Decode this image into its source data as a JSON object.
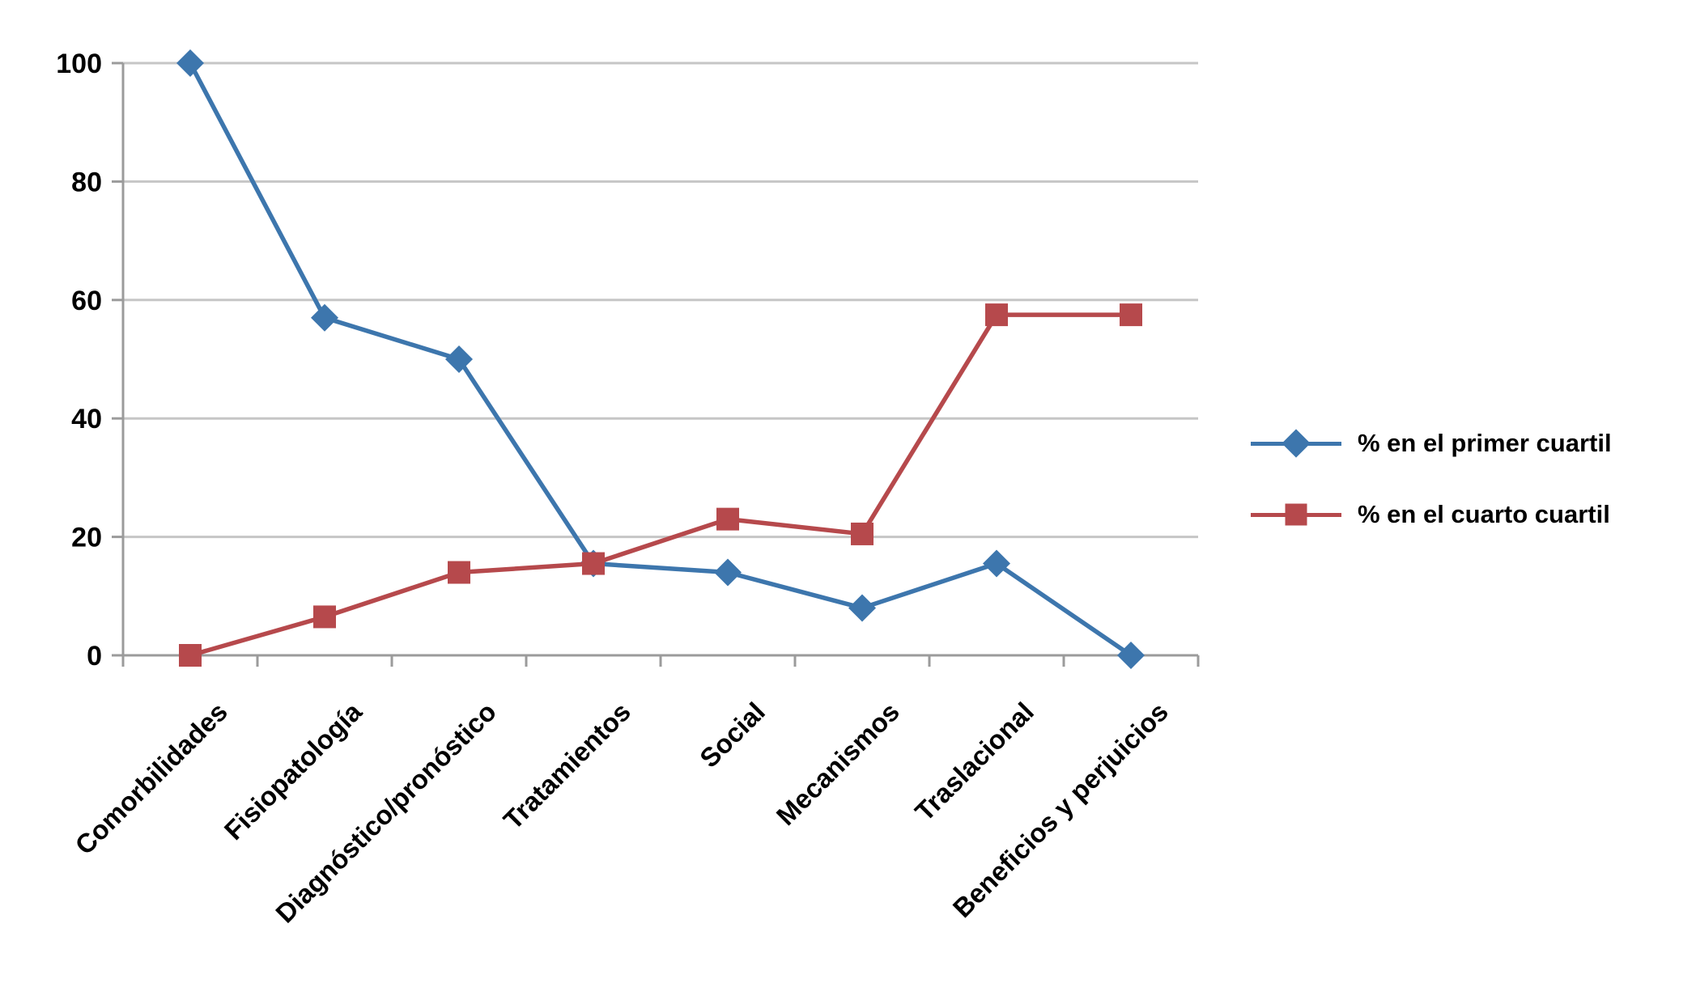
{
  "chart_data": {
    "type": "line",
    "title": "",
    "xlabel": "",
    "ylabel": "",
    "categories": [
      "Comorbilidades",
      "Fisiopatología",
      "Diagnóstico/pronóstico",
      "Tratamientos",
      "Social",
      "Mecanismos",
      "Traslacional",
      "Beneficios y perjuicios"
    ],
    "series": [
      {
        "name": "% en el primer cuartil",
        "marker": "diamond",
        "color": "#3D76AD",
        "values": [
          100,
          57,
          50,
          15.5,
          14,
          8,
          15.5,
          0
        ]
      },
      {
        "name": "% en el cuarto cuartil",
        "marker": "square",
        "color": "#B6494C",
        "values": [
          0,
          6.5,
          14,
          15.5,
          23,
          20.5,
          57.5,
          57.5
        ]
      }
    ],
    "ylim": [
      0,
      100
    ],
    "yticks": [
      0,
      20,
      40,
      60,
      80,
      100
    ],
    "grid": true,
    "legend_position": "right",
    "colors": {
      "grid": "#C6C6C6",
      "axis": "#9B9B9B",
      "text": "#000000",
      "background": "#FFFFFF"
    }
  }
}
